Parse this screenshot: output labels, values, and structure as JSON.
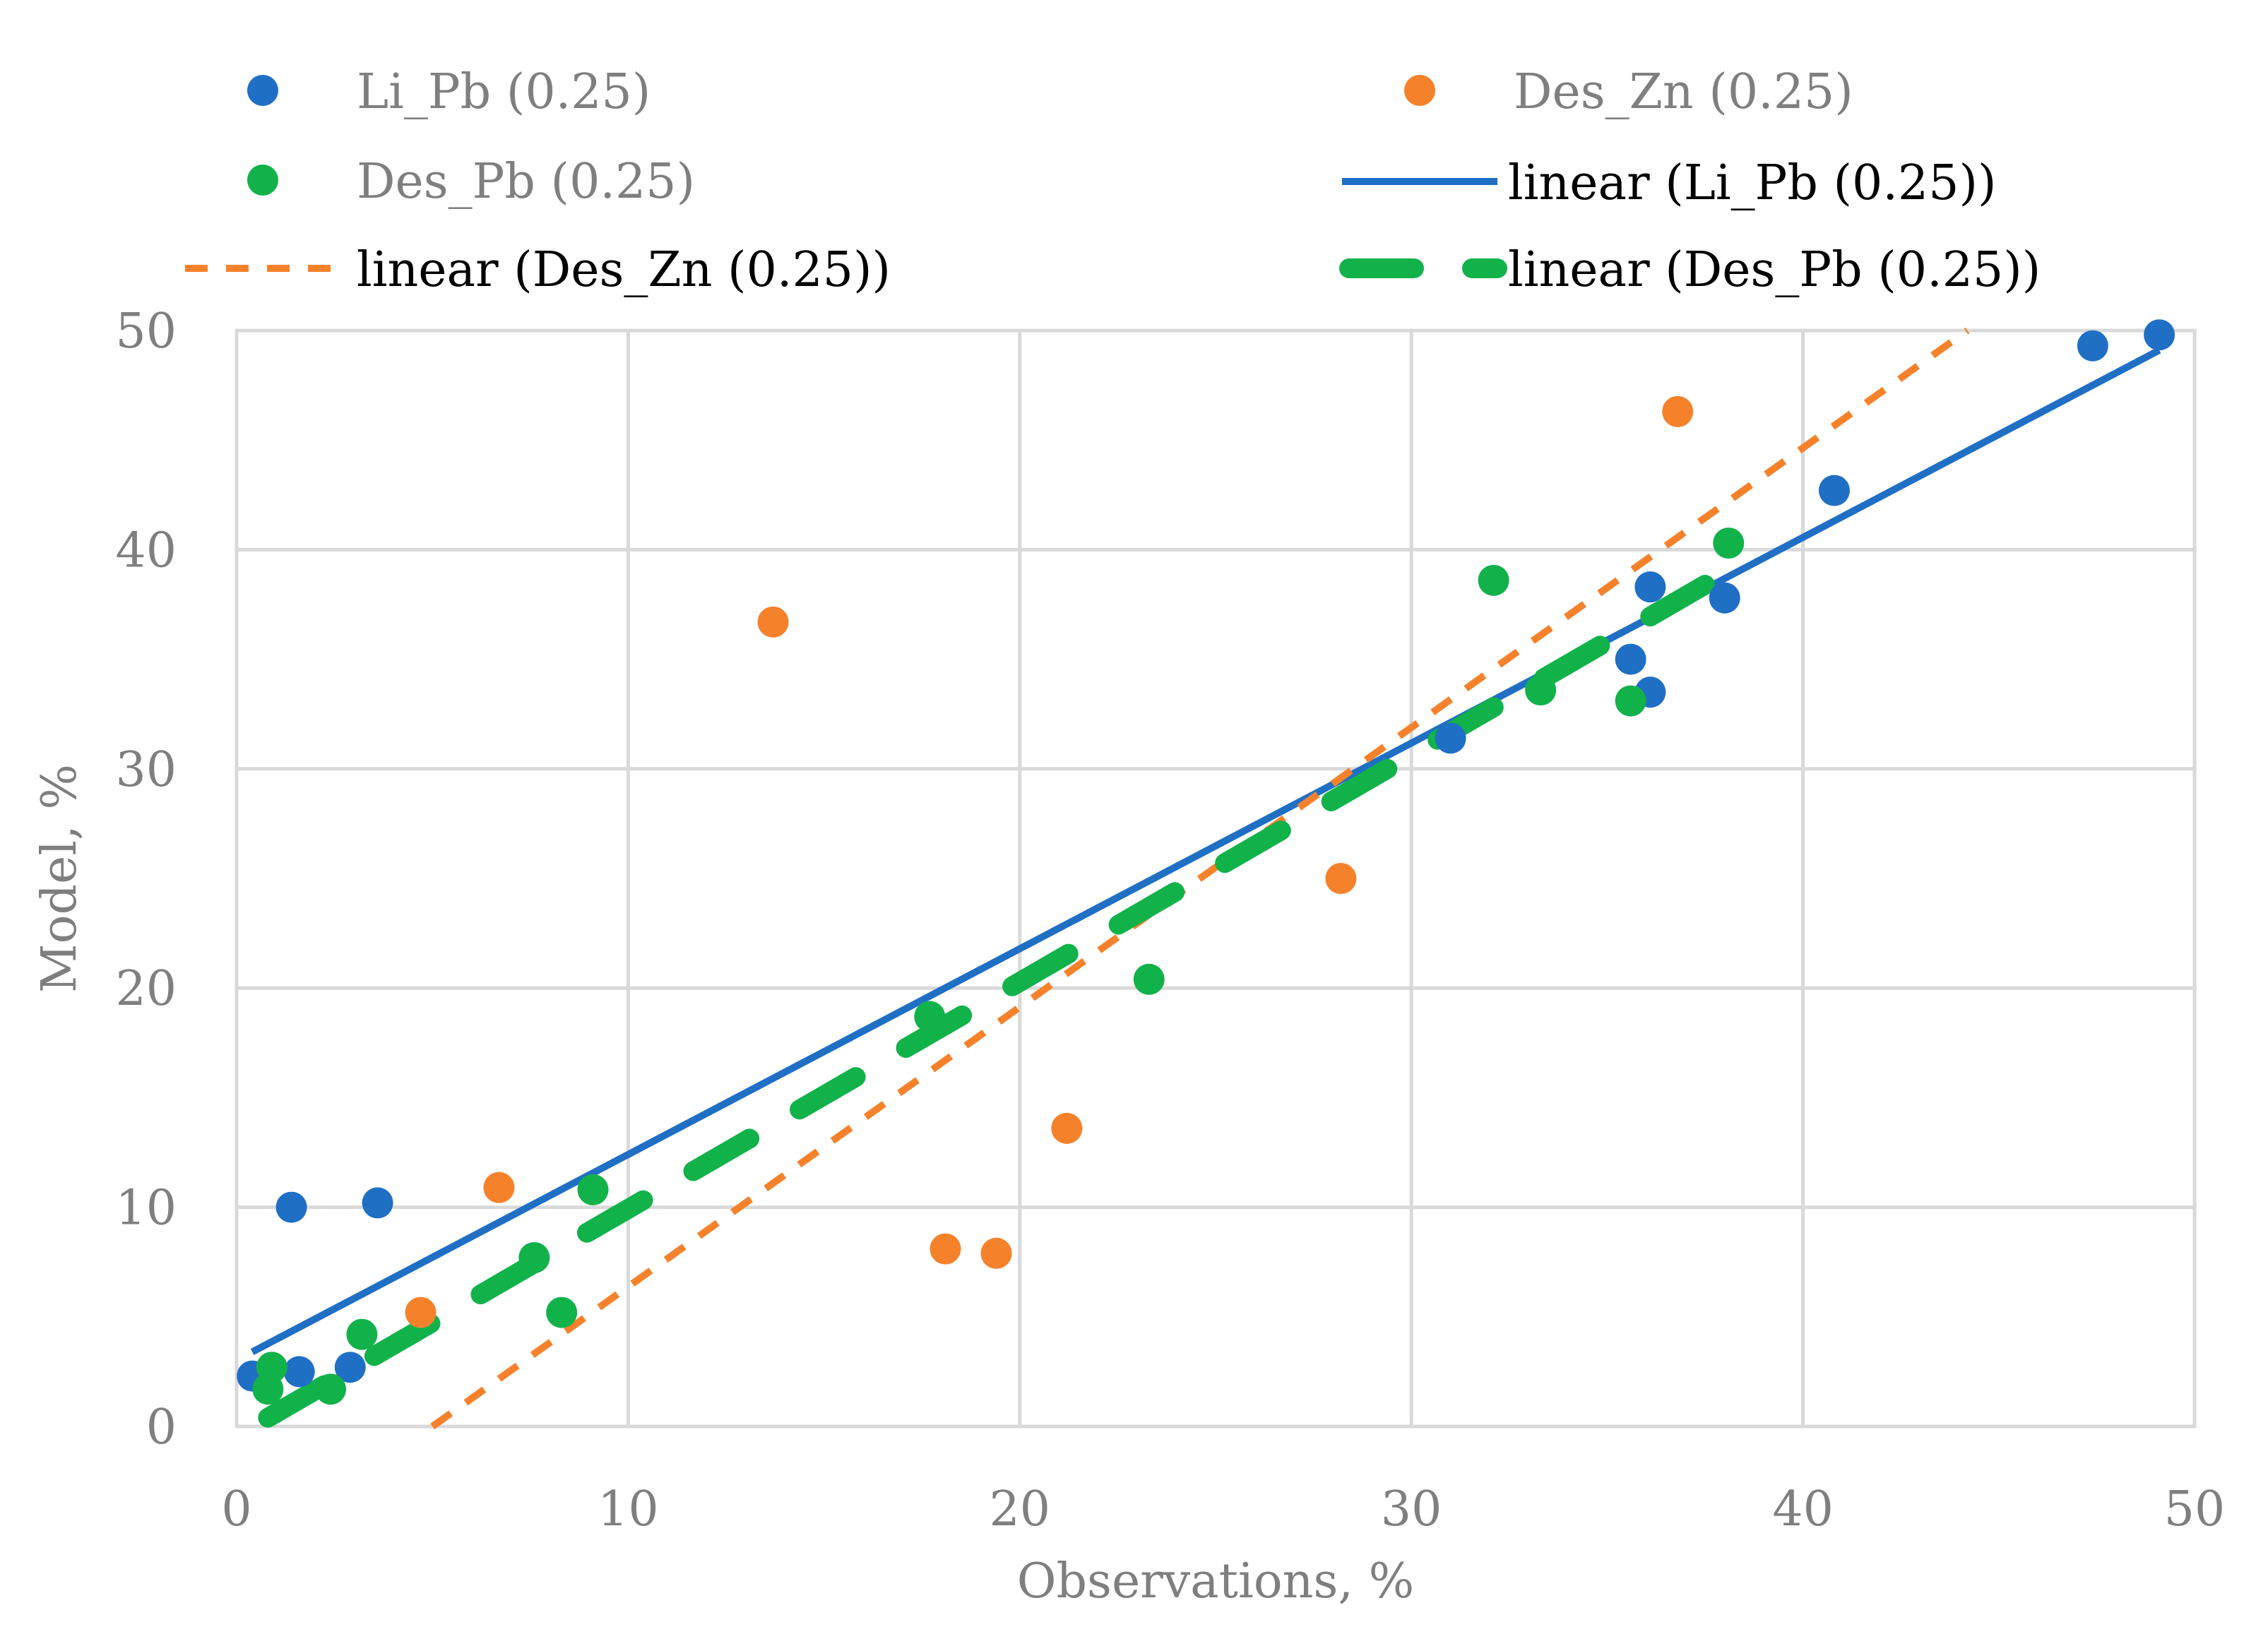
{
  "chart_data": {
    "type": "scatter",
    "title": "",
    "xlabel": "Observations, %",
    "ylabel": "Model, %",
    "xlim": [
      0,
      50
    ],
    "ylim": [
      0,
      50
    ],
    "xticks": [
      0,
      10,
      20,
      30,
      40,
      50
    ],
    "yticks": [
      0,
      10,
      20,
      30,
      40,
      50
    ],
    "grid": true,
    "legend_position": "top",
    "colors": {
      "blue": "#1f6fc5",
      "orange": "#f5822b",
      "green": "#12b24a",
      "grid": "#d9d9d9",
      "text": "#7f7f7f"
    },
    "series": [
      {
        "name": "Li_Pb (0.25)",
        "kind": "points",
        "color": "#1f6fc5",
        "x": [
          0.4,
          1.4,
          1.6,
          2.9,
          3.6,
          31.0,
          35.6,
          36.1,
          36.1,
          38.0,
          40.8,
          47.4,
          49.1
        ],
        "y": [
          2.3,
          10.0,
          2.5,
          2.7,
          10.2,
          31.4,
          35.0,
          33.5,
          38.3,
          37.8,
          42.7,
          49.3,
          49.8
        ]
      },
      {
        "name": "Des_Zn (0.25)",
        "kind": "points",
        "color": "#f5822b",
        "x": [
          4.7,
          6.7,
          13.7,
          18.1,
          19.4,
          21.2,
          28.2,
          36.8
        ],
        "y": [
          5.2,
          10.9,
          36.7,
          8.1,
          7.9,
          13.6,
          25.0,
          46.3
        ]
      },
      {
        "name": "Des_Pb (0.25)",
        "kind": "points",
        "color": "#12b24a",
        "x": [
          0.8,
          0.9,
          2.4,
          3.2,
          7.6,
          8.3,
          9.1,
          17.7,
          23.3,
          32.1,
          33.3,
          35.6,
          38.1
        ],
        "y": [
          1.7,
          2.7,
          1.7,
          4.2,
          7.7,
          5.2,
          10.8,
          18.7,
          20.4,
          38.6,
          33.6,
          33.1,
          40.3
        ]
      },
      {
        "name": "linear (Li_Pb (0.25))",
        "kind": "trendline",
        "style": "solid",
        "color": "#1f6fc5",
        "x": [
          0.4,
          49.1
        ],
        "y": [
          3.4,
          49.1
        ]
      },
      {
        "name": "linear (Des_Zn (0.25))",
        "kind": "trendline",
        "style": "dashed",
        "color": "#f5822b",
        "x": [
          5.0,
          44.2
        ],
        "y": [
          0.0,
          50.0
        ]
      },
      {
        "name": "linear (Des_Pb (0.25))",
        "kind": "trendline",
        "style": "long-dash",
        "color": "#12b24a",
        "x": [
          0.8,
          37.5
        ],
        "y": [
          0.4,
          38.4
        ]
      }
    ]
  }
}
